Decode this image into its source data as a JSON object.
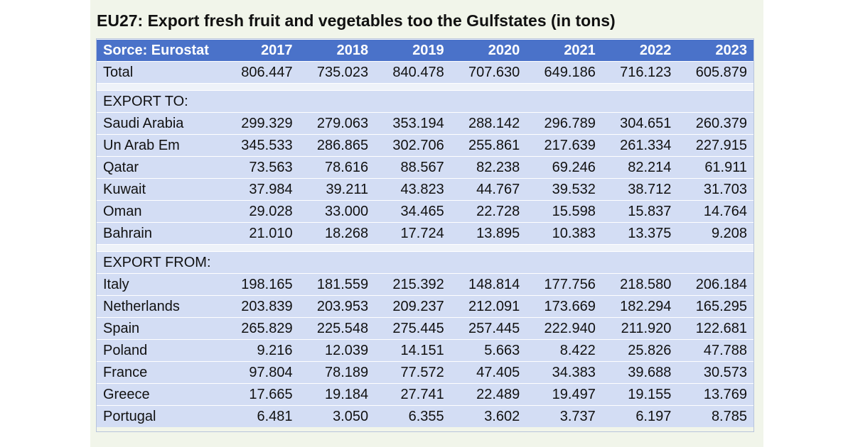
{
  "title": "EU27: Export fresh fruit and vegetables too the Gulfstates (in tons)",
  "header": {
    "source_label": "Sorce: Eurostat",
    "years": [
      "2017",
      "2018",
      "2019",
      "2020",
      "2021",
      "2022",
      "2023"
    ]
  },
  "total_row": {
    "label": "Total",
    "values": [
      "806.447",
      "735.023",
      "840.478",
      "707.630",
      "649.186",
      "716.123",
      "605.879"
    ]
  },
  "export_to": {
    "heading": "EXPORT TO:",
    "rows": [
      {
        "label": "Saudi Arabia",
        "values": [
          "299.329",
          "279.063",
          "353.194",
          "288.142",
          "296.789",
          "304.651",
          "260.379"
        ]
      },
      {
        "label": "Un Arab Em",
        "values": [
          "345.533",
          "286.865",
          "302.706",
          "255.861",
          "217.639",
          "261.334",
          "227.915"
        ]
      },
      {
        "label": "Qatar",
        "values": [
          "73.563",
          "78.616",
          "88.567",
          "82.238",
          "69.246",
          "82.214",
          "61.911"
        ]
      },
      {
        "label": "Kuwait",
        "values": [
          "37.984",
          "39.211",
          "43.823",
          "44.767",
          "39.532",
          "38.712",
          "31.703"
        ]
      },
      {
        "label": "Oman",
        "values": [
          "29.028",
          "33.000",
          "34.465",
          "22.728",
          "15.598",
          "15.837",
          "14.764"
        ]
      },
      {
        "label": "Bahrain",
        "values": [
          "21.010",
          "18.268",
          "17.724",
          "13.895",
          "10.383",
          "13.375",
          "9.208"
        ]
      }
    ]
  },
  "export_from": {
    "heading": "EXPORT FROM:",
    "rows": [
      {
        "label": "Italy",
        "values": [
          "198.165",
          "181.559",
          "215.392",
          "148.814",
          "177.756",
          "218.580",
          "206.184"
        ]
      },
      {
        "label": "Netherlands",
        "values": [
          "203.839",
          "203.953",
          "209.237",
          "212.091",
          "173.669",
          "182.294",
          "165.295"
        ]
      },
      {
        "label": "Spain",
        "values": [
          "265.829",
          "225.548",
          "275.445",
          "257.445",
          "222.940",
          "211.920",
          "122.681"
        ]
      },
      {
        "label": "Poland",
        "values": [
          "9.216",
          "12.039",
          "14.151",
          "5.663",
          "8.422",
          "25.826",
          "47.788"
        ]
      },
      {
        "label": "France",
        "values": [
          "97.804",
          "78.189",
          "77.572",
          "47.405",
          "34.383",
          "39.688",
          "30.573"
        ]
      },
      {
        "label": "Greece",
        "values": [
          "17.665",
          "19.184",
          "27.741",
          "22.489",
          "19.497",
          "19.155",
          "13.769"
        ]
      },
      {
        "label": "Portugal",
        "values": [
          "6.481",
          "3.050",
          "6.355",
          "3.602",
          "3.737",
          "6.197",
          "8.785"
        ]
      }
    ]
  },
  "chart_data": {
    "type": "table",
    "title": "EU27: Export fresh fruit and vegetables too the Gulfstates (in tons)",
    "source": "Sorce: Eurostat",
    "columns": [
      "2017",
      "2018",
      "2019",
      "2020",
      "2021",
      "2022",
      "2023"
    ],
    "unit": "tons"
  },
  "colors": {
    "header_bg": "#4a72c9",
    "row_bg": "#d3ddf4",
    "card_bg": "#f1f5ea"
  }
}
